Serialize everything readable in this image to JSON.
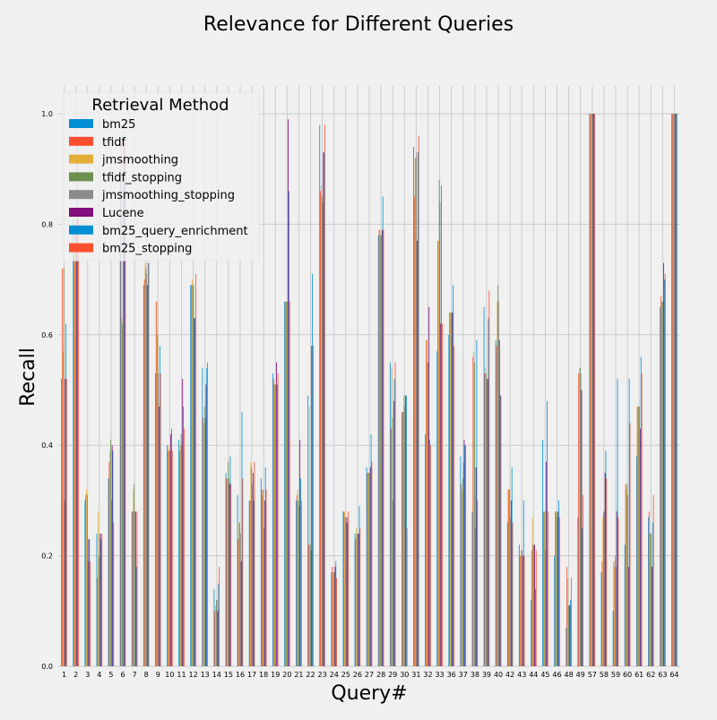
{
  "chart_data": {
    "type": "bar",
    "title": "Relevance for Different Queries",
    "xlabel": "Query#",
    "ylabel": "Recall",
    "ylim": [
      0,
      1.0
    ],
    "yticks": [
      "0.0",
      "0.2",
      "0.4",
      "0.6",
      "0.8",
      "1.0"
    ],
    "grid": true,
    "legend": {
      "title": "Retrieval Method",
      "placement": "top-left"
    },
    "categories": [
      "1",
      "2",
      "3",
      "4",
      "5",
      "6",
      "7",
      "8",
      "9",
      "10",
      "11",
      "12",
      "13",
      "14",
      "15",
      "16",
      "17",
      "18",
      "19",
      "20",
      "21",
      "22",
      "23",
      "24",
      "25",
      "26",
      "27",
      "28",
      "29",
      "30",
      "31",
      "32",
      "33",
      "36",
      "37",
      "38",
      "39",
      "40",
      "42",
      "43",
      "44",
      "45",
      "46",
      "48",
      "49",
      "57",
      "58",
      "59",
      "60",
      "61",
      "62",
      "63",
      "64"
    ],
    "series": [
      {
        "name": "bm25",
        "color": "#008fd5",
        "values": [
          0.52,
          0.81,
          0.3,
          0.24,
          0.34,
          0.9,
          0.28,
          0.69,
          0.53,
          0.4,
          0.41,
          0.69,
          0.54,
          0.14,
          0.35,
          0.31,
          0.3,
          0.34,
          0.53,
          0.66,
          0.3,
          0.49,
          0.98,
          0.17,
          0.28,
          0.24,
          0.36,
          0.78,
          0.55,
          0.46,
          0.94,
          0.42,
          0.57,
          0.6,
          0.38,
          0.28,
          0.65,
          0.59,
          0.26,
          0.22,
          0.12,
          0.41,
          0.2,
          0.07,
          0.27,
          1.0,
          0.17,
          0.1,
          0.22,
          0.38,
          0.27,
          0.65,
          1.0
        ]
      },
      {
        "name": "tfidf",
        "color": "#fc4f30",
        "values": [
          0.72,
          0.78,
          0.31,
          0.16,
          0.37,
          0.95,
          0.28,
          0.7,
          0.66,
          0.39,
          0.39,
          0.69,
          0.45,
          0.1,
          0.34,
          0.23,
          0.3,
          0.32,
          0.52,
          0.66,
          0.31,
          0.22,
          0.86,
          0.18,
          0.28,
          0.23,
          0.35,
          0.79,
          0.43,
          0.46,
          0.85,
          0.59,
          0.77,
          0.64,
          0.33,
          0.56,
          0.53,
          0.58,
          0.32,
          0.2,
          0.21,
          0.28,
          0.28,
          0.18,
          0.53,
          1.0,
          0.19,
          0.19,
          0.33,
          0.47,
          0.28,
          0.67,
          1.0
        ]
      },
      {
        "name": "jmsmoothing",
        "color": "#e5ae38",
        "values": [
          0.57,
          0.75,
          0.32,
          0.28,
          0.39,
          0.63,
          0.32,
          0.73,
          0.66,
          0.4,
          0.4,
          0.7,
          0.44,
          0.11,
          0.34,
          0.26,
          0.37,
          0.31,
          0.51,
          0.66,
          0.32,
          0.47,
          0.87,
          0.17,
          0.28,
          0.25,
          0.35,
          0.79,
          0.54,
          0.46,
          0.92,
          0.59,
          0.77,
          0.64,
          0.32,
          0.57,
          0.54,
          0.66,
          0.32,
          0.2,
          0.27,
          0.28,
          0.28,
          0.16,
          0.54,
          1.0,
          0.27,
          0.18,
          0.32,
          0.47,
          0.24,
          0.66,
          1.0
        ]
      },
      {
        "name": "tfidf_stopping",
        "color": "#6d904f",
        "values": [
          0.72,
          0.78,
          0.31,
          0.2,
          0.41,
          0.62,
          0.33,
          0.72,
          0.6,
          0.39,
          0.42,
          0.69,
          0.47,
          0.12,
          0.37,
          0.26,
          0.36,
          0.32,
          0.51,
          0.66,
          0.3,
          0.22,
          0.85,
          0.17,
          0.27,
          0.24,
          0.35,
          0.78,
          0.45,
          0.49,
          0.92,
          0.55,
          0.88,
          0.64,
          0.34,
          0.55,
          0.53,
          0.69,
          0.32,
          0.21,
          0.22,
          0.28,
          0.28,
          0.11,
          0.54,
          1.0,
          0.28,
          0.2,
          0.33,
          0.47,
          0.24,
          0.66,
          1.0
        ]
      },
      {
        "name": "jmsmoothing_stopping",
        "color": "#8b8b8b",
        "values": [
          0.3,
          0.78,
          0.19,
          0.24,
          0.3,
          0.86,
          0.28,
          0.71,
          0.53,
          0.39,
          0.4,
          0.69,
          0.45,
          0.12,
          0.34,
          0.24,
          0.33,
          0.25,
          0.51,
          0.66,
          0.29,
          0.21,
          0.84,
          0.17,
          0.26,
          0.24,
          0.35,
          0.78,
          0.3,
          0.47,
          0.93,
          0.55,
          0.84,
          0.64,
          0.37,
          0.25,
          0.52,
          0.66,
          0.27,
          0.21,
          0.22,
          0.21,
          0.27,
          0.11,
          0.53,
          1.0,
          0.28,
          0.18,
          0.31,
          0.47,
          0.24,
          0.66,
          1.0
        ]
      },
      {
        "name": "Lucene",
        "color": "#810f7c",
        "values": [
          0.52,
          0.81,
          0.23,
          0.24,
          0.4,
          0.95,
          0.28,
          0.69,
          0.47,
          0.42,
          0.52,
          0.63,
          0.51,
          0.1,
          0.33,
          0.19,
          0.35,
          0.3,
          0.55,
          0.99,
          0.41,
          0.58,
          0.93,
          0.18,
          0.27,
          0.24,
          0.36,
          0.79,
          0.48,
          0.49,
          0.77,
          0.65,
          0.62,
          0.64,
          0.41,
          0.36,
          0.52,
          0.59,
          0.3,
          0.2,
          0.22,
          0.37,
          0.28,
          0.11,
          0.5,
          1.0,
          0.35,
          0.28,
          0.18,
          0.43,
          0.18,
          0.73,
          1.0
        ]
      },
      {
        "name": "bm25_query_enrichment",
        "color": "#008fd5",
        "values": [
          0.62,
          0.95,
          0.23,
          0.23,
          0.39,
          0.93,
          0.18,
          0.73,
          0.58,
          0.43,
          0.47,
          0.63,
          0.54,
          0.15,
          0.38,
          0.46,
          0.3,
          0.36,
          0.51,
          0.86,
          0.34,
          0.71,
          0.93,
          0.19,
          0.26,
          0.29,
          0.42,
          0.85,
          0.52,
          0.49,
          0.93,
          0.41,
          0.87,
          0.69,
          0.4,
          0.59,
          0.63,
          0.49,
          0.36,
          0.3,
          0.14,
          0.48,
          0.3,
          0.12,
          0.25,
          1.0,
          0.39,
          0.52,
          0.52,
          0.56,
          0.26,
          0.7,
          1.0
        ]
      },
      {
        "name": "bm25_stopping",
        "color": "#fc4f30",
        "values": [
          0.52,
          0.81,
          0.19,
          0.24,
          0.26,
          0.95,
          0.28,
          0.73,
          0.53,
          0.39,
          0.43,
          0.71,
          0.55,
          0.18,
          0.33,
          0.34,
          0.37,
          0.32,
          0.53,
          0.66,
          0.3,
          0.58,
          0.98,
          0.16,
          0.28,
          0.25,
          0.37,
          0.79,
          0.55,
          0.25,
          0.96,
          0.4,
          0.62,
          0.58,
          0.4,
          0.3,
          0.68,
          0.49,
          0.26,
          0.2,
          0.21,
          0.28,
          0.27,
          0.16,
          0.31,
          1.0,
          0.34,
          0.27,
          0.44,
          0.53,
          0.31,
          0.71,
          1.0
        ]
      }
    ]
  }
}
